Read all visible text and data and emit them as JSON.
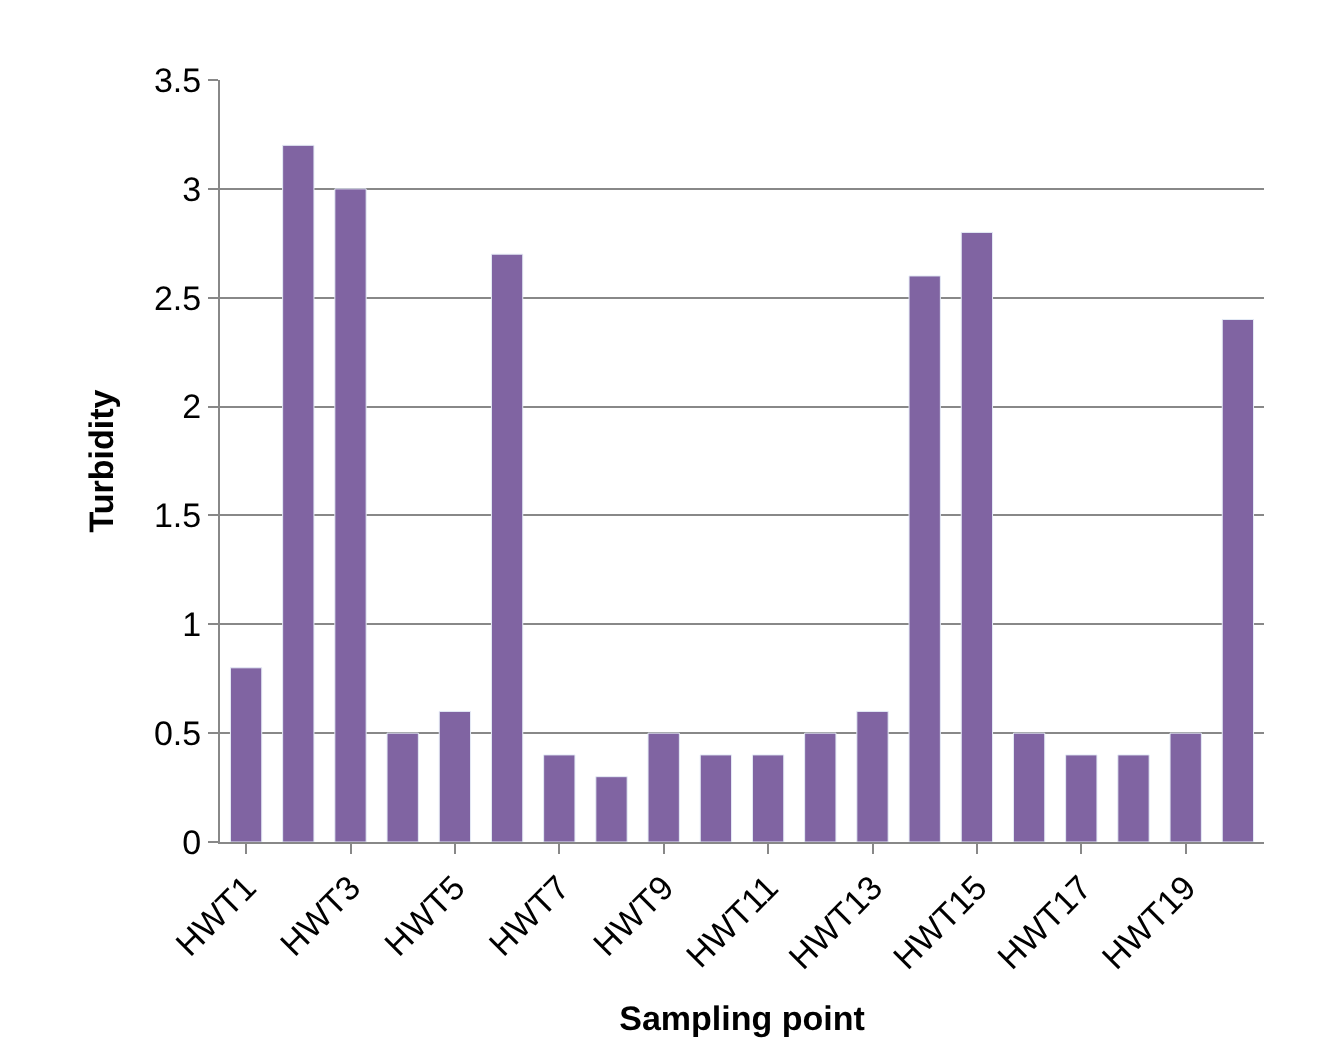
{
  "chart_data": {
    "type": "bar",
    "xlabel": "Sampling point",
    "ylabel": "Turbidity",
    "categories": [
      "HWT1",
      null,
      "HWT3",
      null,
      "HWT5",
      null,
      "HWT7",
      null,
      "HWT9",
      null,
      "HWT11",
      null,
      "HWT13",
      null,
      "HWT15",
      null,
      "HWT17",
      null,
      "HWT19",
      null
    ],
    "values": [
      0.8,
      3.2,
      3.0,
      0.5,
      0.6,
      2.7,
      0.4,
      0.3,
      0.5,
      0.4,
      0.4,
      0.5,
      0.6,
      2.6,
      2.8,
      0.5,
      0.4,
      0.4,
      0.5,
      2.4
    ],
    "color": "#8064a2",
    "ylim": [
      0,
      3.5
    ],
    "yticks": [
      0,
      0.5,
      1,
      1.5,
      2,
      2.5,
      3,
      3.5
    ],
    "grid": "y"
  }
}
